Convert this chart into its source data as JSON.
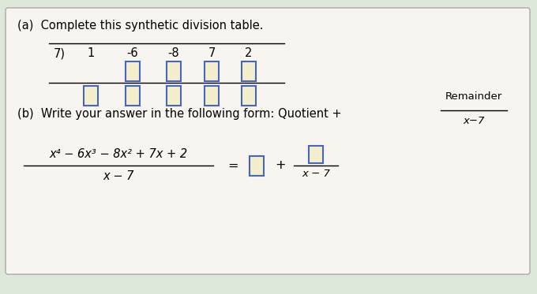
{
  "bg_color": "#dde8d8",
  "card_facecolor": "#f8f5f0",
  "card_edge_color": "#aaaaaa",
  "box_fill": "#f5eecc",
  "box_edge": "#4466bb",
  "title_a": "(a)  Complete this synthetic division table.",
  "divisor": "7)",
  "coefficients": [
    "1",
    "-6",
    "-8",
    "7",
    "2"
  ],
  "part_b_intro": "(b)  Write your answer in the following form: Quotient +",
  "remainder_label": "Remainder",
  "denom_b": "x−7",
  "frac_num": "x⁴ − 6x³ − 8x² + 7x + 2",
  "frac_den": "x − 7",
  "equals": "=",
  "plus": "+",
  "font_size": 10.5,
  "font_size_small": 9.5
}
